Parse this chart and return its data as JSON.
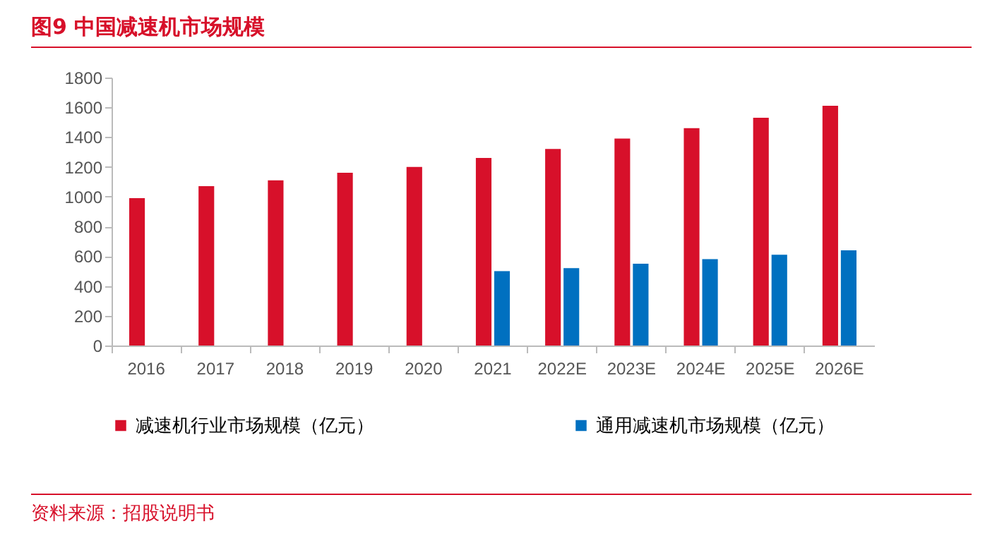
{
  "chart_data": {
    "type": "bar",
    "title": "图9  中国减速机市场规模",
    "categories": [
      "2016",
      "2017",
      "2018",
      "2019",
      "2020",
      "2021",
      "2022E",
      "2023E",
      "2024E",
      "2025E",
      "2026E"
    ],
    "series": [
      {
        "name": "减速机行业市场规模（亿元）",
        "color": "#d7102a",
        "values": [
          990,
          1070,
          1110,
          1160,
          1200,
          1260,
          1320,
          1390,
          1460,
          1530,
          1610
        ]
      },
      {
        "name": "通用减速机市场规模（亿元）",
        "color": "#0070c0",
        "values": [
          null,
          null,
          null,
          null,
          null,
          500,
          520,
          550,
          580,
          610,
          640
        ]
      }
    ],
    "ylim": [
      0,
      1800
    ],
    "yticks": [
      0,
      200,
      400,
      600,
      800,
      1000,
      1200,
      1400,
      1600,
      1800
    ],
    "grid": false,
    "legend": "bottom",
    "annotations": [
      "资料来源：招股说明书"
    ]
  }
}
